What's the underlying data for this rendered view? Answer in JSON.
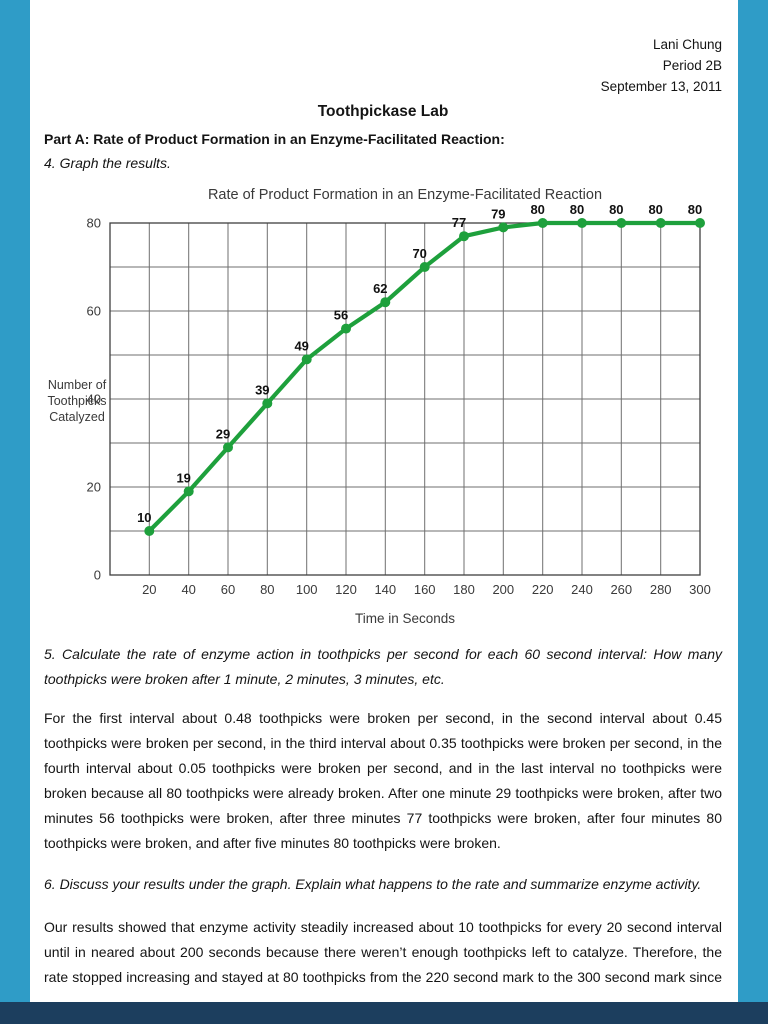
{
  "colors": {
    "frame_blue": "#2f9cc7",
    "bottom_bar": "#1c3e5e",
    "page_bg": "#ffffff"
  },
  "header": {
    "author": "Lani Chung",
    "period": "Period 2B",
    "date": "September 13, 2011"
  },
  "doc": {
    "title": "Toothpickase Lab",
    "section_heading": "Part A: Rate of Product Formation in an Enzyme-Facilitated Reaction:",
    "q4": "4. Graph the results.",
    "q5": "5. Calculate the rate of enzyme action in toothpicks per second for each 60 second interval: How many toothpicks were broken after 1 minute, 2 minutes, 3 minutes, etc.",
    "a5": "For the first interval about 0.48 toothpicks were broken per second, in the second interval about 0.45 toothpicks were broken per second, in the third interval about 0.35 toothpicks were broken per second, in the fourth interval about 0.05 toothpicks were broken per second, and in the last interval no toothpicks were broken because all 80 toothpicks were already broken. After one minute 29 toothpicks were broken, after two minutes 56 toothpicks were broken, after three minutes 77 toothpicks were broken, after four minutes 80 toothpicks were broken, and after five minutes 80 toothpicks were broken.",
    "q6": "6. Discuss your results under the graph. Explain what happens to the rate and summarize enzyme activity.",
    "a6": "Our results showed that enzyme activity steadily increased about 10 toothpicks for every 20 second interval until in neared about 200 seconds because there weren’t enough toothpicks left to catalyze. Therefore, the rate stopped increasing and stayed at 80 toothpicks from the 220 second mark to the 300 second mark since"
  },
  "chart_data": {
    "type": "line",
    "title": "Rate of Product Formation in an Enzyme-Facilitated Reaction",
    "xlabel": "Time in Seconds",
    "ylabel_lines": [
      "Number of",
      "Toothpicks",
      "Catalyzed"
    ],
    "x": [
      20,
      40,
      60,
      80,
      100,
      120,
      140,
      160,
      180,
      200,
      220,
      240,
      260,
      280,
      300
    ],
    "values": [
      10,
      19,
      29,
      39,
      49,
      56,
      62,
      70,
      77,
      79,
      80,
      80,
      80,
      80,
      80
    ],
    "x_ticks": [
      20,
      40,
      60,
      80,
      100,
      120,
      140,
      160,
      180,
      200,
      220,
      240,
      260,
      280,
      300
    ],
    "y_ticks": [
      0,
      20,
      40,
      60,
      80
    ],
    "xlim": [
      0,
      300
    ],
    "ylim": [
      0,
      80
    ],
    "x_grid_step": 20,
    "y_grid_step": 10,
    "grid": true,
    "legend_position": "none",
    "line_color": "#1ea03c",
    "grid_color": "#6f6f6f",
    "frame_color": "#3f3f3f",
    "label_color": "#111111",
    "axis_text_color": "#3a3a3a"
  }
}
